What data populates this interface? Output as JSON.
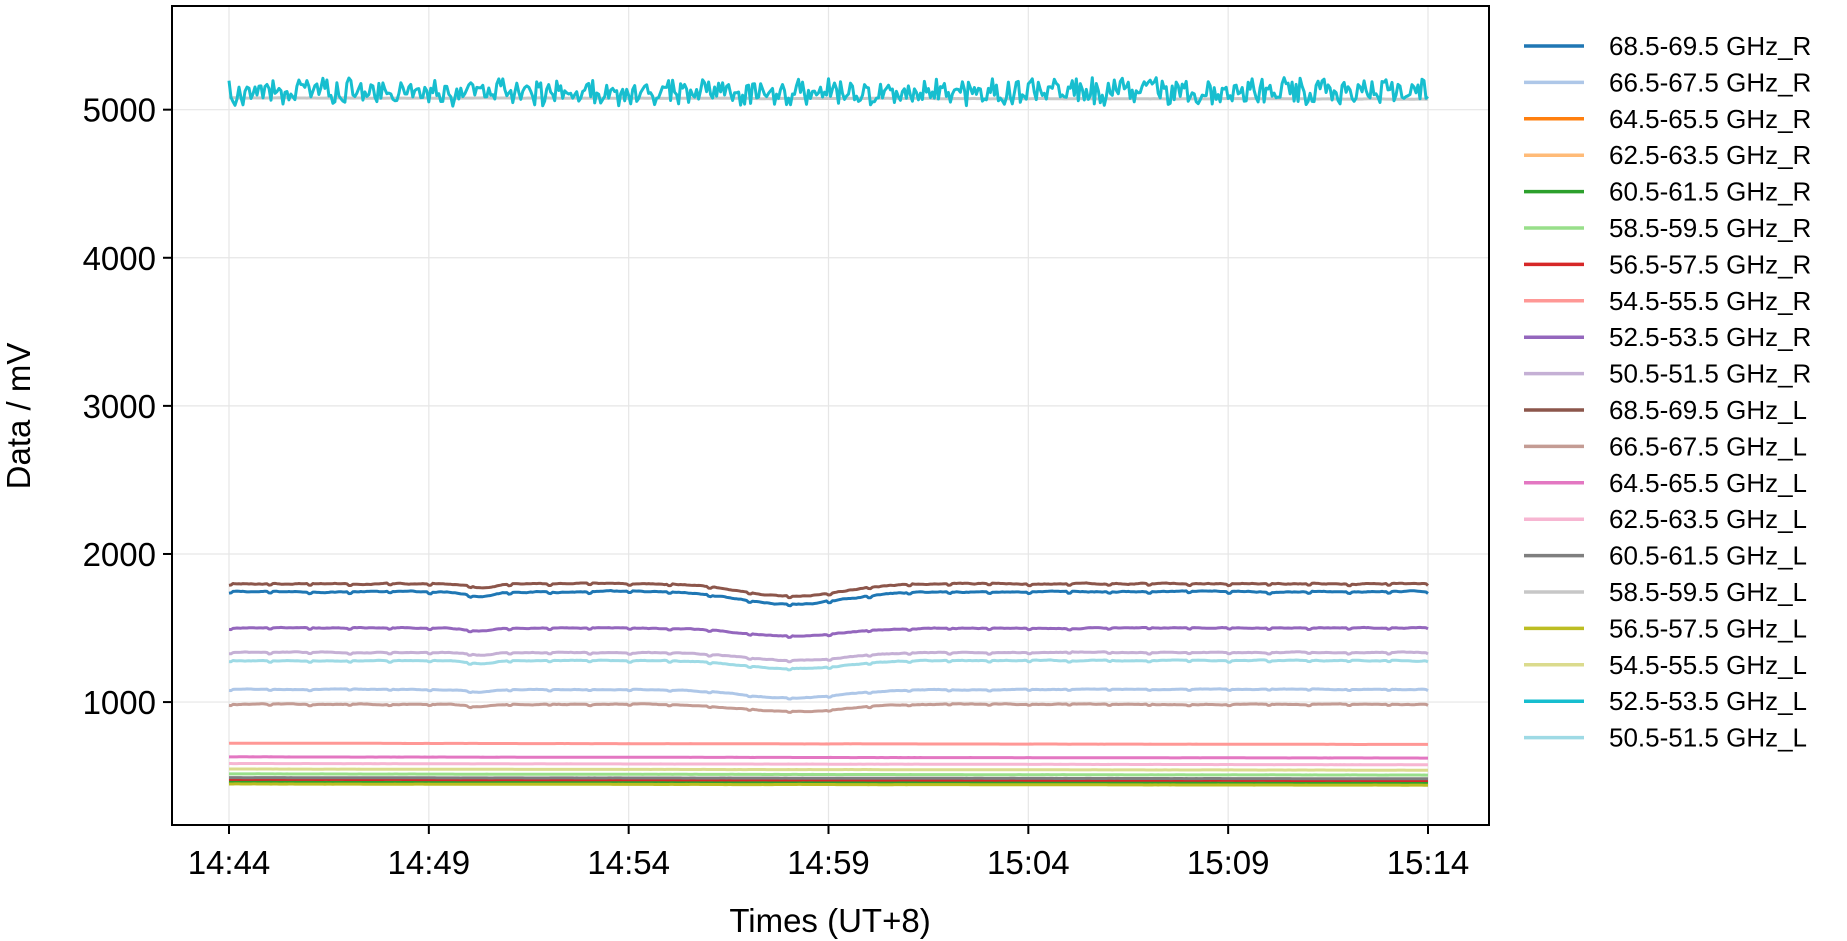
{
  "chart_data": {
    "type": "line",
    "title": "",
    "xlabel": "Times (UT+8)",
    "ylabel": "Data / mV",
    "x_start": "14:44",
    "x_end": "15:14",
    "x_ticks": [
      "14:44",
      "14:49",
      "14:54",
      "14:59",
      "15:04",
      "15:09",
      "15:14"
    ],
    "ylim": [
      170,
      5700
    ],
    "y_ticks": [
      1000,
      2000,
      3000,
      4000,
      5000
    ],
    "grid": true,
    "legend_position": "outside-right",
    "series": [
      {
        "name": "68.5-69.5 GHz_R",
        "color": "#1f77b4",
        "base": 1745,
        "noise": 15,
        "dip": 85
      },
      {
        "name": "66.5-67.5 GHz_R",
        "color": "#aec7e8",
        "base": 1085,
        "noise": 10,
        "dip": 55
      },
      {
        "name": "64.5-65.5 GHz_R",
        "color": "#ff7f0e",
        "base": 455,
        "noise": 2,
        "dip": 0
      },
      {
        "name": "62.5-63.5 GHz_R",
        "color": "#ffbb78",
        "base": 470,
        "noise": 2,
        "dip": 0
      },
      {
        "name": "60.5-61.5 GHz_R",
        "color": "#2ca02c",
        "base": 460,
        "noise": 2,
        "dip": 0
      },
      {
        "name": "58.5-59.5 GHz_R",
        "color": "#98df8a",
        "base": 515,
        "noise": 2,
        "dip": 0
      },
      {
        "name": "56.5-57.5 GHz_R",
        "color": "#d62728",
        "base": 478,
        "noise": 2,
        "dip": 0
      },
      {
        "name": "54.5-55.5 GHz_R",
        "color": "#ff9896",
        "base": 722,
        "noise": 2,
        "dip": 0
      },
      {
        "name": "52.5-53.5 GHz_R",
        "color": "#9467bd",
        "base": 1500,
        "noise": 12,
        "dip": 55
      },
      {
        "name": "50.5-51.5 GHz_R",
        "color": "#c5b0d5",
        "base": 1335,
        "noise": 12,
        "dip": 55
      },
      {
        "name": "68.5-69.5 GHz_L",
        "color": "#8c564b",
        "base": 1800,
        "noise": 15,
        "dip": 85
      },
      {
        "name": "66.5-67.5 GHz_L",
        "color": "#c49c94",
        "base": 985,
        "noise": 10,
        "dip": 50
      },
      {
        "name": "64.5-65.5 GHz_L",
        "color": "#e377c2",
        "base": 630,
        "noise": 2,
        "dip": 0
      },
      {
        "name": "62.5-63.5 GHz_L",
        "color": "#f7b6d2",
        "base": 585,
        "noise": 2,
        "dip": 0
      },
      {
        "name": "60.5-61.5 GHz_L",
        "color": "#7f7f7f",
        "base": 490,
        "noise": 2,
        "dip": 0
      },
      {
        "name": "58.5-59.5 GHz_L",
        "color": "#c7c7c7",
        "base": 5080,
        "noise": 8,
        "dip": 0
      },
      {
        "name": "56.5-57.5 GHz_L",
        "color": "#bcbd22",
        "base": 447,
        "noise": 2,
        "dip": 0
      },
      {
        "name": "54.5-55.5 GHz_L",
        "color": "#dbdb8d",
        "base": 548,
        "noise": 2,
        "dip": 0
      },
      {
        "name": "52.5-53.5 GHz_L",
        "color": "#17becf",
        "base": 5120,
        "noise": 75,
        "dip": 0
      },
      {
        "name": "50.5-51.5 GHz_L",
        "color": "#9edae5",
        "base": 1280,
        "noise": 12,
        "dip": 55
      }
    ]
  }
}
